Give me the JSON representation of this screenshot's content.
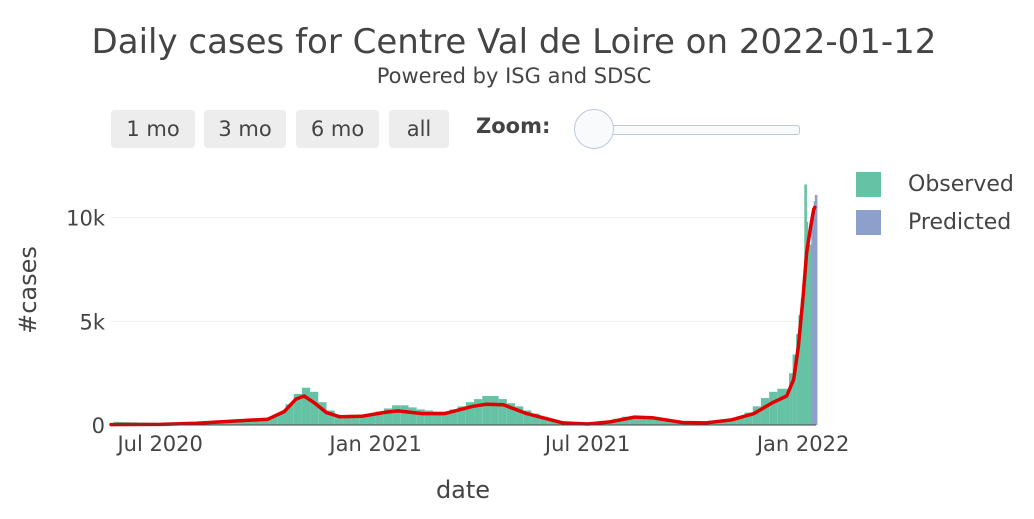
{
  "header": {
    "title": "Daily cases for Centre Val de Loire on 2022-01-12",
    "subtitle": "Powered by ISG and SDSC"
  },
  "range_selector": {
    "buttons": [
      "1 mo",
      "3 mo",
      "6 mo",
      "all"
    ],
    "zoom_label": "Zoom:"
  },
  "legend": {
    "position": "right",
    "items": [
      {
        "label": "Observed",
        "color": "#66c2a5"
      },
      {
        "label": "Predicted",
        "color": "#8da0cb"
      }
    ]
  },
  "colors": {
    "observed": "#66c2a5",
    "predicted": "#8da0cb",
    "trend": "#e00000",
    "grid": "#eeeeee"
  },
  "chart_data": {
    "type": "bar",
    "title": "Daily cases for Centre Val de Loire on 2022-01-12",
    "subtitle": "Powered by ISG and SDSC",
    "xlabel": "date",
    "ylabel": "#cases",
    "x_tick_labels": [
      "Jul 2020",
      "Jan 2021",
      "Jul 2021",
      "Jan 2022"
    ],
    "y_tick_labels": [
      "0",
      "5k",
      "10k"
    ],
    "y_ticks": [
      0,
      5000,
      10000
    ],
    "xlim": [
      "2020-05-20",
      "2022-01-12"
    ],
    "ylim": [
      0,
      12300
    ],
    "grid": true,
    "legend": "right",
    "series": [
      {
        "name": "Observed",
        "type": "bar",
        "color": "#66c2a5",
        "points": [
          [
            "2020-05-22",
            150
          ],
          [
            "2020-05-29",
            140
          ],
          [
            "2020-06-05",
            130
          ],
          [
            "2020-06-12",
            120
          ],
          [
            "2020-06-19",
            110
          ],
          [
            "2020-06-26",
            100
          ],
          [
            "2020-07-03",
            95
          ],
          [
            "2020-07-10",
            90
          ],
          [
            "2020-07-17",
            100
          ],
          [
            "2020-07-24",
            110
          ],
          [
            "2020-07-31",
            130
          ],
          [
            "2020-08-07",
            150
          ],
          [
            "2020-08-14",
            170
          ],
          [
            "2020-08-21",
            200
          ],
          [
            "2020-08-28",
            230
          ],
          [
            "2020-09-04",
            260
          ],
          [
            "2020-09-11",
            280
          ],
          [
            "2020-09-18",
            300
          ],
          [
            "2020-09-25",
            320
          ],
          [
            "2020-10-02",
            400
          ],
          [
            "2020-10-09",
            600
          ],
          [
            "2020-10-16",
            1000
          ],
          [
            "2020-10-23",
            1500
          ],
          [
            "2020-10-30",
            1800
          ],
          [
            "2020-11-06",
            1600
          ],
          [
            "2020-11-13",
            1100
          ],
          [
            "2020-11-20",
            700
          ],
          [
            "2020-11-27",
            480
          ],
          [
            "2020-12-04",
            420
          ],
          [
            "2020-12-11",
            400
          ],
          [
            "2020-12-18",
            450
          ],
          [
            "2020-12-25",
            550
          ],
          [
            "2021-01-01",
            650
          ],
          [
            "2021-01-08",
            800
          ],
          [
            "2021-01-15",
            950
          ],
          [
            "2021-01-22",
            950
          ],
          [
            "2021-01-29",
            850
          ],
          [
            "2021-02-05",
            750
          ],
          [
            "2021-02-12",
            700
          ],
          [
            "2021-02-19",
            650
          ],
          [
            "2021-02-26",
            650
          ],
          [
            "2021-03-05",
            750
          ],
          [
            "2021-03-12",
            900
          ],
          [
            "2021-03-19",
            1100
          ],
          [
            "2021-03-26",
            1250
          ],
          [
            "2021-04-02",
            1400
          ],
          [
            "2021-04-09",
            1400
          ],
          [
            "2021-04-16",
            1250
          ],
          [
            "2021-04-23",
            1050
          ],
          [
            "2021-04-30",
            900
          ],
          [
            "2021-05-07",
            700
          ],
          [
            "2021-05-14",
            550
          ],
          [
            "2021-05-21",
            400
          ],
          [
            "2021-05-28",
            250
          ],
          [
            "2021-06-04",
            150
          ],
          [
            "2021-06-11",
            100
          ],
          [
            "2021-06-18",
            70
          ],
          [
            "2021-06-25",
            60
          ],
          [
            "2021-07-02",
            70
          ],
          [
            "2021-07-09",
            100
          ],
          [
            "2021-07-16",
            200
          ],
          [
            "2021-07-23",
            300
          ],
          [
            "2021-07-30",
            400
          ],
          [
            "2021-08-06",
            420
          ],
          [
            "2021-08-13",
            400
          ],
          [
            "2021-08-20",
            350
          ],
          [
            "2021-08-27",
            280
          ],
          [
            "2021-09-03",
            220
          ],
          [
            "2021-09-10",
            160
          ],
          [
            "2021-09-17",
            130
          ],
          [
            "2021-09-24",
            110
          ],
          [
            "2021-10-01",
            100
          ],
          [
            "2021-10-08",
            110
          ],
          [
            "2021-10-15",
            140
          ],
          [
            "2021-10-22",
            200
          ],
          [
            "2021-10-29",
            300
          ],
          [
            "2021-11-05",
            400
          ],
          [
            "2021-11-12",
            600
          ],
          [
            "2021-11-19",
            900
          ],
          [
            "2021-11-26",
            1300
          ],
          [
            "2021-12-03",
            1600
          ],
          [
            "2021-12-10",
            1750
          ],
          [
            "2021-12-17",
            1750
          ],
          [
            "2021-12-20",
            2500
          ],
          [
            "2021-12-23",
            3400
          ],
          [
            "2021-12-26",
            4400
          ],
          [
            "2021-12-28",
            5300
          ],
          [
            "2021-12-30",
            6100
          ],
          [
            "2021-12-31",
            6500
          ],
          [
            "2022-01-02",
            11600
          ],
          [
            "2022-01-03",
            9800
          ],
          [
            "2022-01-04",
            9100
          ],
          [
            "2022-01-05",
            8700
          ],
          [
            "2022-01-06",
            8600
          ],
          [
            "2022-01-07",
            8700
          ]
        ]
      },
      {
        "name": "Predicted",
        "type": "bar",
        "color": "#8da0cb",
        "points": [
          [
            "2022-01-08",
            9500
          ],
          [
            "2022-01-09",
            10200
          ],
          [
            "2022-01-10",
            10800
          ],
          [
            "2022-01-11",
            11100
          ]
        ]
      },
      {
        "name": "trend",
        "type": "line",
        "color": "#e00000",
        "points": [
          [
            "2020-05-20",
            20
          ],
          [
            "2020-07-01",
            30
          ],
          [
            "2020-08-01",
            80
          ],
          [
            "2020-09-01",
            190
          ],
          [
            "2020-10-01",
            280
          ],
          [
            "2020-10-15",
            650
          ],
          [
            "2020-10-25",
            1250
          ],
          [
            "2020-11-01",
            1400
          ],
          [
            "2020-11-10",
            1050
          ],
          [
            "2020-11-20",
            600
          ],
          [
            "2020-12-01",
            400
          ],
          [
            "2020-12-20",
            420
          ],
          [
            "2021-01-10",
            620
          ],
          [
            "2021-01-20",
            680
          ],
          [
            "2021-02-10",
            550
          ],
          [
            "2021-03-01",
            550
          ],
          [
            "2021-03-25",
            900
          ],
          [
            "2021-04-05",
            1000
          ],
          [
            "2021-04-20",
            980
          ],
          [
            "2021-05-10",
            550
          ],
          [
            "2021-06-10",
            100
          ],
          [
            "2021-07-01",
            50
          ],
          [
            "2021-07-20",
            150
          ],
          [
            "2021-08-10",
            380
          ],
          [
            "2021-08-25",
            350
          ],
          [
            "2021-09-20",
            120
          ],
          [
            "2021-10-10",
            100
          ],
          [
            "2021-11-01",
            250
          ],
          [
            "2021-11-20",
            550
          ],
          [
            "2021-12-05",
            1050
          ],
          [
            "2021-12-18",
            1400
          ],
          [
            "2021-12-24",
            2200
          ],
          [
            "2021-12-28",
            3800
          ],
          [
            "2022-01-01",
            6200
          ],
          [
            "2022-01-04",
            8300
          ],
          [
            "2022-01-07",
            9400
          ],
          [
            "2022-01-10",
            10400
          ],
          [
            "2022-01-11",
            10500
          ]
        ]
      }
    ]
  }
}
